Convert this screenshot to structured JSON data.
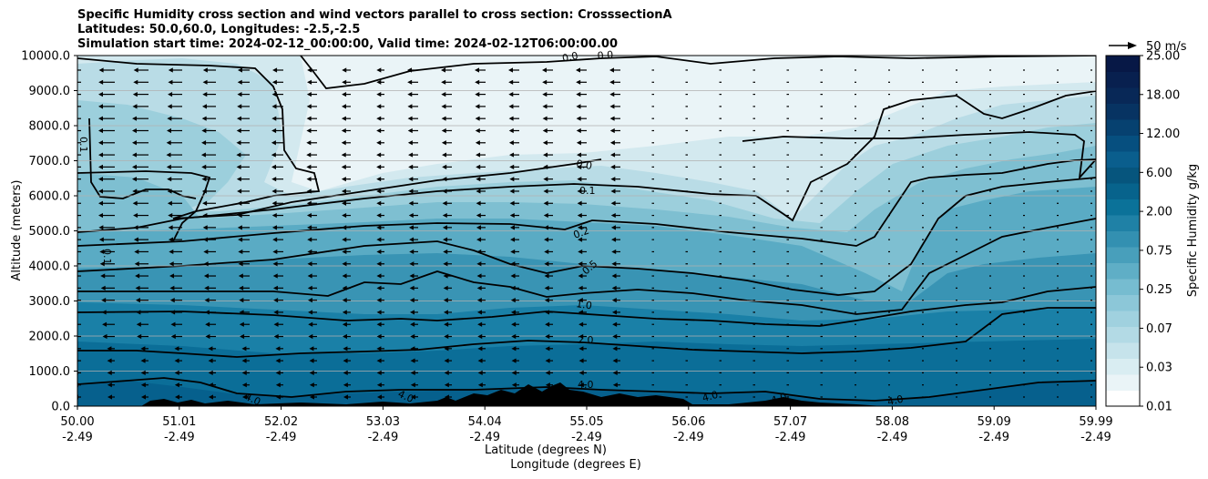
{
  "title_lines": [
    "Specific Humidity cross section and wind vectors parallel to cross section: CrosssectionA",
    "Latitudes: 50.0,60.0, Longitudes: -2.5,-2.5",
    "Simulation start time: 2024-02-12_00:00:00, Valid time: 2024-02-12T06:00:00.00"
  ],
  "chart_data": {
    "type": "heatmap",
    "ylabel": "Altitude (meters)",
    "xlabel_lines": [
      "Latitude (degrees N)",
      "Longitude (degrees E)"
    ],
    "ylim": [
      0,
      10000
    ],
    "y_ticks": [
      "0.0",
      "1000.0",
      "2000.0",
      "3000.0",
      "4000.0",
      "5000.0",
      "6000.0",
      "7000.0",
      "8000.0",
      "9000.0",
      "10000.0"
    ],
    "x_ticks": [
      {
        "lat": "50.00",
        "lon": "-2.49"
      },
      {
        "lat": "51.01",
        "lon": "-2.49"
      },
      {
        "lat": "52.02",
        "lon": "-2.49"
      },
      {
        "lat": "53.03",
        "lon": "-2.49"
      },
      {
        "lat": "54.04",
        "lon": "-2.49"
      },
      {
        "lat": "55.05",
        "lon": "-2.49"
      },
      {
        "lat": "56.06",
        "lon": "-2.49"
      },
      {
        "lat": "57.07",
        "lon": "-2.49"
      },
      {
        "lat": "58.08",
        "lon": "-2.49"
      },
      {
        "lat": "59.09",
        "lon": "-2.49"
      },
      {
        "lat": "59.99",
        "lon": "-2.49"
      }
    ],
    "grid": "horizontal",
    "colorbar": {
      "label": "Specific Humidity g/kg",
      "tick_labels": [
        "0.01",
        "0.03",
        "0.07",
        "0.25",
        "0.75",
        "2.00",
        "6.00",
        "12.00",
        "18.00",
        "25.00"
      ]
    },
    "contour_labels": [
      "0.0",
      "0.0",
      "0.1",
      "0.2",
      "0.5",
      "1.0",
      "2.0",
      "4.0",
      "0.0",
      "0.1",
      "0.1",
      "4.0",
      "4.0",
      "4.0",
      "4.0",
      "4.0"
    ],
    "quiver_key": "50 m/s"
  }
}
